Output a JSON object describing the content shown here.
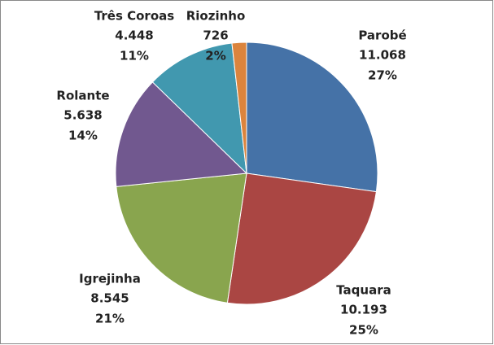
{
  "chart_data": {
    "type": "pie",
    "categories": [
      "Parobé",
      "Taquara",
      "Igrejinha",
      "Rolante",
      "Três Coroas",
      "Riozinho"
    ],
    "values": [
      11068,
      10193,
      8545,
      5638,
      4448,
      726
    ],
    "value_labels": [
      "11.068",
      "10.193",
      "8.545",
      "5.638",
      "4.448",
      "726"
    ],
    "percent_labels": [
      "27%",
      "25%",
      "21%",
      "14%",
      "11%",
      "2%"
    ],
    "colors": [
      "#4572a7",
      "#aa4643",
      "#89a54e",
      "#71588f",
      "#4198af",
      "#db843d"
    ]
  }
}
